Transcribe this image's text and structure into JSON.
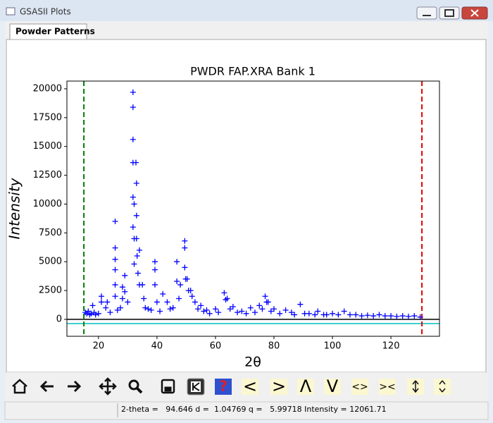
{
  "window": {
    "title": "GSASII Plots",
    "tab": "Powder Patterns",
    "status": "2-theta =   94.646 d =  1.04769 q =   5.99718 Intensity = 12061.71",
    "toolbar_labels": [
      "<",
      ">",
      "Λ",
      "V",
      "<>",
      "><"
    ]
  },
  "chart_data": {
    "type": "scatter",
    "title": "PWDR FAP.XRA Bank 1",
    "x_label": "2θ",
    "y_label": "Intensity",
    "marker": "+",
    "color": "#0000ff",
    "xlim": [
      9.2,
      136.6
    ],
    "ylim": [
      -1470,
      20670
    ],
    "xticks": [
      20,
      40,
      60,
      80,
      100,
      120
    ],
    "yticks": [
      0,
      2500,
      5000,
      7500,
      10000,
      12500,
      15000,
      17500,
      20000
    ],
    "x": [
      15.5,
      16,
      16.5,
      17,
      17.5,
      18,
      18.5,
      19,
      20,
      21,
      21,
      22.5,
      23,
      24,
      25.7,
      25.7,
      25.7,
      25.7,
      25.7,
      25.7,
      26.5,
      27.5,
      28.2,
      28.2,
      29,
      29,
      30,
      31.8,
      31.8,
      31.8,
      31.8,
      31.8,
      31.8,
      32.2,
      32.2,
      32.2,
      32.8,
      33,
      33,
      33,
      33.2,
      33.5,
      34,
      34,
      35,
      35.5,
      36,
      37,
      38,
      39.3,
      39.3,
      39.3,
      40,
      41,
      42,
      43.5,
      44.5,
      45.5,
      46.8,
      46.8,
      47.5,
      48,
      49.5,
      49.5,
      49.5,
      49.8,
      50.3,
      50.8,
      51.5,
      52,
      53,
      54,
      55,
      56,
      57,
      58,
      60,
      61,
      63,
      63.5,
      64,
      65,
      66,
      67.5,
      69,
      70.5,
      72,
      73.5,
      75,
      76,
      77,
      77.5,
      78,
      79,
      80,
      82,
      84,
      86,
      87,
      89,
      90.5,
      92,
      94,
      95,
      97,
      98,
      100,
      102,
      104,
      106,
      108,
      110,
      112,
      114,
      116,
      118,
      120,
      122,
      124,
      126,
      128,
      130
    ],
    "values": [
      600,
      500,
      700,
      400,
      500,
      1200,
      600,
      400,
      500,
      2000,
      1500,
      1000,
      1500,
      600,
      8500,
      6200,
      5200,
      4300,
      3000,
      2000,
      800,
      1000,
      2800,
      1800,
      3800,
      2400,
      1500,
      19700,
      18400,
      15600,
      13600,
      10600,
      8000,
      10000,
      7000,
      4800,
      13600,
      11800,
      9000,
      7000,
      5500,
      4000,
      6000,
      3000,
      3000,
      1800,
      1000,
      900,
      800,
      5000,
      4300,
      3000,
      1500,
      700,
      2200,
      1500,
      900,
      1000,
      5000,
      3300,
      1800,
      3000,
      6800,
      6200,
      4500,
      3500,
      3500,
      2500,
      2500,
      2000,
      1500,
      900,
      1200,
      700,
      800,
      500,
      900,
      600,
      2300,
      1700,
      1800,
      900,
      1100,
      600,
      700,
      500,
      1000,
      600,
      1200,
      900,
      2000,
      1500,
      1500,
      700,
      900,
      500,
      800,
      600,
      400,
      1300,
      500,
      500,
      400,
      700,
      400,
      400,
      500,
      400,
      700,
      400,
      400,
      300,
      350,
      300,
      400,
      300,
      300,
      250,
      300,
      250,
      300,
      200
    ],
    "vlines": [
      {
        "x": 15,
        "color": "#008000"
      },
      {
        "x": 130.6,
        "color": "#e00000"
      }
    ],
    "hlines": [
      {
        "y": 0,
        "color": "#000000"
      },
      {
        "y": -370,
        "color": "#00c0c0"
      }
    ]
  }
}
